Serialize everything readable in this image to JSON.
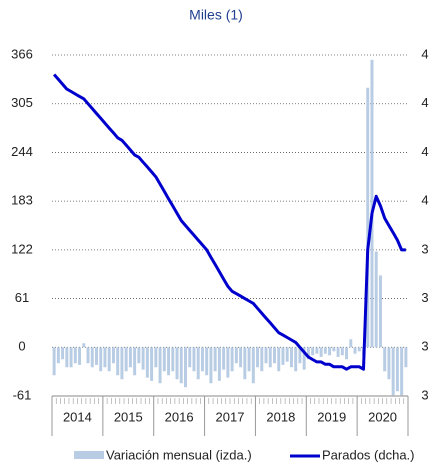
{
  "chart_data": {
    "type": "bar_line",
    "title": "Miles (1)",
    "years": [
      "2014",
      "2015",
      "2016",
      "2017",
      "2018",
      "2019",
      "2020"
    ],
    "ylim": [
      -61,
      366
    ],
    "yticks": [
      -61,
      0,
      61,
      122,
      183,
      244,
      305,
      366
    ],
    "y2lim": [
      2.8,
      4.2
    ],
    "y2ticks": [
      {
        "value": 2.8,
        "label": "3"
      },
      {
        "value": 3.0,
        "label": "3"
      },
      {
        "value": 3.2,
        "label": "3"
      },
      {
        "value": 3.4,
        "label": "3"
      },
      {
        "value": 3.6,
        "label": "4"
      },
      {
        "value": 3.8,
        "label": "4"
      },
      {
        "value": 4.0,
        "label": "4"
      },
      {
        "value": 4.2,
        "label": "4"
      }
    ],
    "grid": true,
    "series": [
      {
        "name": "Variación mensual (izda.)",
        "color": "#b8cce4",
        "type": "bar",
        "values": [
          -35,
          -20,
          -15,
          -25,
          -25,
          -20,
          -22,
          5,
          -20,
          -25,
          -22,
          -30,
          -25,
          -30,
          -20,
          -35,
          -40,
          -30,
          -25,
          -35,
          -20,
          -28,
          -38,
          -42,
          -25,
          -45,
          -30,
          -35,
          -30,
          -40,
          -45,
          -50,
          -25,
          -30,
          -40,
          -30,
          -35,
          -45,
          -30,
          -42,
          -28,
          -38,
          -30,
          -20,
          -25,
          -40,
          -30,
          -45,
          -25,
          -30,
          -20,
          -25,
          -20,
          -30,
          -22,
          -18,
          -25,
          -30,
          -20,
          -28,
          -15,
          -10,
          -8,
          -12,
          -8,
          -10,
          -5,
          -12,
          -10,
          -15,
          10,
          -8,
          -5,
          -10,
          325,
          360,
          120,
          90,
          -30,
          -40,
          -60,
          -55,
          -60,
          -25
        ]
      },
      {
        "name": "Parados (dcha.)",
        "color": "#0000cc",
        "type": "line",
        "axis": "y2",
        "values": [
          4.12,
          4.1,
          4.08,
          4.06,
          4.05,
          4.04,
          4.03,
          4.02,
          4.0,
          3.98,
          3.96,
          3.94,
          3.92,
          3.9,
          3.88,
          3.86,
          3.85,
          3.83,
          3.81,
          3.79,
          3.78,
          3.76,
          3.74,
          3.72,
          3.7,
          3.67,
          3.64,
          3.61,
          3.58,
          3.55,
          3.52,
          3.5,
          3.48,
          3.46,
          3.44,
          3.42,
          3.4,
          3.37,
          3.34,
          3.31,
          3.28,
          3.25,
          3.23,
          3.22,
          3.21,
          3.2,
          3.19,
          3.18,
          3.16,
          3.14,
          3.12,
          3.1,
          3.08,
          3.06,
          3.05,
          3.04,
          3.03,
          3.02,
          3.0,
          2.98,
          2.96,
          2.95,
          2.94,
          2.94,
          2.93,
          2.93,
          2.92,
          2.92,
          2.92,
          2.91,
          2.92,
          2.92,
          2.92,
          2.91,
          3.4,
          3.55,
          3.62,
          3.58,
          3.53,
          3.5,
          3.47,
          3.44,
          3.4,
          3.4
        ]
      }
    ]
  }
}
